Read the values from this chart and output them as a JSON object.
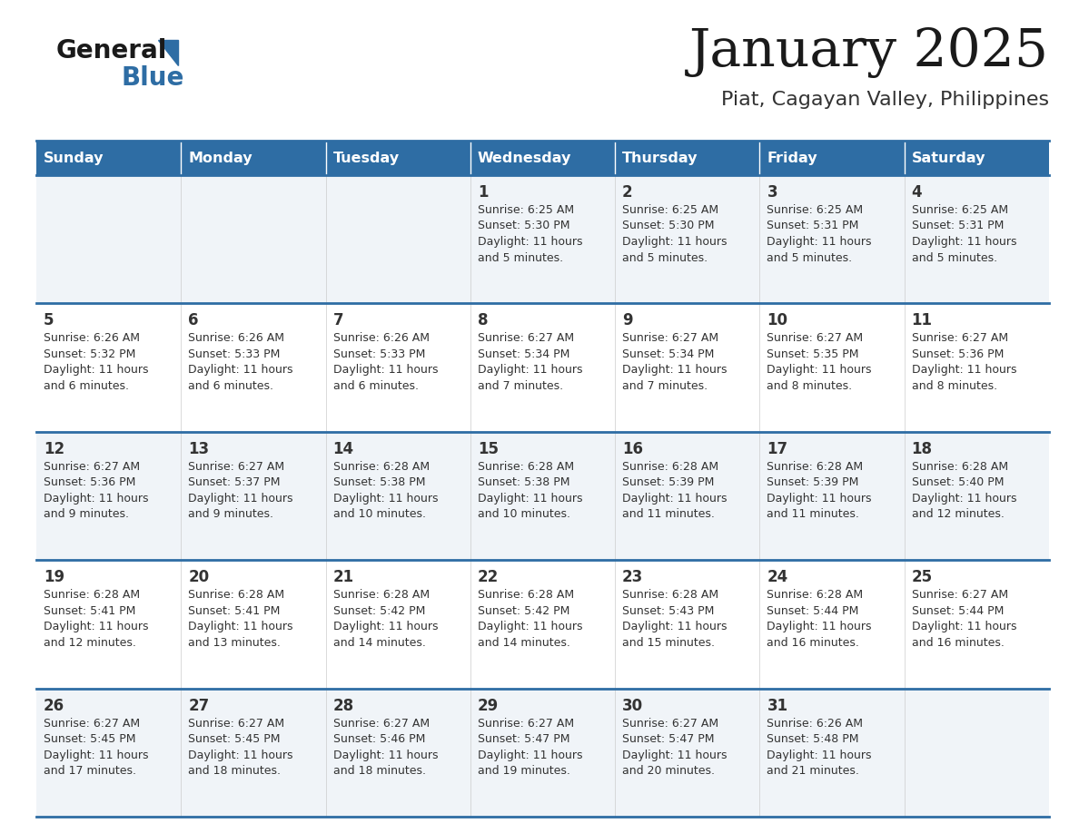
{
  "title": "January 2025",
  "subtitle": "Piat, Cagayan Valley, Philippines",
  "header_color": "#2E6DA4",
  "header_text_color": "#FFFFFF",
  "row0_color": "#F0F4F8",
  "row1_color": "#FFFFFF",
  "border_color": "#2E6DA4",
  "text_color": "#333333",
  "days_of_week": [
    "Sunday",
    "Monday",
    "Tuesday",
    "Wednesday",
    "Thursday",
    "Friday",
    "Saturday"
  ],
  "calendar_data": [
    [
      {
        "day": "",
        "info": ""
      },
      {
        "day": "",
        "info": ""
      },
      {
        "day": "",
        "info": ""
      },
      {
        "day": "1",
        "info": "Sunrise: 6:25 AM\nSunset: 5:30 PM\nDaylight: 11 hours\nand 5 minutes."
      },
      {
        "day": "2",
        "info": "Sunrise: 6:25 AM\nSunset: 5:30 PM\nDaylight: 11 hours\nand 5 minutes."
      },
      {
        "day": "3",
        "info": "Sunrise: 6:25 AM\nSunset: 5:31 PM\nDaylight: 11 hours\nand 5 minutes."
      },
      {
        "day": "4",
        "info": "Sunrise: 6:25 AM\nSunset: 5:31 PM\nDaylight: 11 hours\nand 5 minutes."
      }
    ],
    [
      {
        "day": "5",
        "info": "Sunrise: 6:26 AM\nSunset: 5:32 PM\nDaylight: 11 hours\nand 6 minutes."
      },
      {
        "day": "6",
        "info": "Sunrise: 6:26 AM\nSunset: 5:33 PM\nDaylight: 11 hours\nand 6 minutes."
      },
      {
        "day": "7",
        "info": "Sunrise: 6:26 AM\nSunset: 5:33 PM\nDaylight: 11 hours\nand 6 minutes."
      },
      {
        "day": "8",
        "info": "Sunrise: 6:27 AM\nSunset: 5:34 PM\nDaylight: 11 hours\nand 7 minutes."
      },
      {
        "day": "9",
        "info": "Sunrise: 6:27 AM\nSunset: 5:34 PM\nDaylight: 11 hours\nand 7 minutes."
      },
      {
        "day": "10",
        "info": "Sunrise: 6:27 AM\nSunset: 5:35 PM\nDaylight: 11 hours\nand 8 minutes."
      },
      {
        "day": "11",
        "info": "Sunrise: 6:27 AM\nSunset: 5:36 PM\nDaylight: 11 hours\nand 8 minutes."
      }
    ],
    [
      {
        "day": "12",
        "info": "Sunrise: 6:27 AM\nSunset: 5:36 PM\nDaylight: 11 hours\nand 9 minutes."
      },
      {
        "day": "13",
        "info": "Sunrise: 6:27 AM\nSunset: 5:37 PM\nDaylight: 11 hours\nand 9 minutes."
      },
      {
        "day": "14",
        "info": "Sunrise: 6:28 AM\nSunset: 5:38 PM\nDaylight: 11 hours\nand 10 minutes."
      },
      {
        "day": "15",
        "info": "Sunrise: 6:28 AM\nSunset: 5:38 PM\nDaylight: 11 hours\nand 10 minutes."
      },
      {
        "day": "16",
        "info": "Sunrise: 6:28 AM\nSunset: 5:39 PM\nDaylight: 11 hours\nand 11 minutes."
      },
      {
        "day": "17",
        "info": "Sunrise: 6:28 AM\nSunset: 5:39 PM\nDaylight: 11 hours\nand 11 minutes."
      },
      {
        "day": "18",
        "info": "Sunrise: 6:28 AM\nSunset: 5:40 PM\nDaylight: 11 hours\nand 12 minutes."
      }
    ],
    [
      {
        "day": "19",
        "info": "Sunrise: 6:28 AM\nSunset: 5:41 PM\nDaylight: 11 hours\nand 12 minutes."
      },
      {
        "day": "20",
        "info": "Sunrise: 6:28 AM\nSunset: 5:41 PM\nDaylight: 11 hours\nand 13 minutes."
      },
      {
        "day": "21",
        "info": "Sunrise: 6:28 AM\nSunset: 5:42 PM\nDaylight: 11 hours\nand 14 minutes."
      },
      {
        "day": "22",
        "info": "Sunrise: 6:28 AM\nSunset: 5:42 PM\nDaylight: 11 hours\nand 14 minutes."
      },
      {
        "day": "23",
        "info": "Sunrise: 6:28 AM\nSunset: 5:43 PM\nDaylight: 11 hours\nand 15 minutes."
      },
      {
        "day": "24",
        "info": "Sunrise: 6:28 AM\nSunset: 5:44 PM\nDaylight: 11 hours\nand 16 minutes."
      },
      {
        "day": "25",
        "info": "Sunrise: 6:27 AM\nSunset: 5:44 PM\nDaylight: 11 hours\nand 16 minutes."
      }
    ],
    [
      {
        "day": "26",
        "info": "Sunrise: 6:27 AM\nSunset: 5:45 PM\nDaylight: 11 hours\nand 17 minutes."
      },
      {
        "day": "27",
        "info": "Sunrise: 6:27 AM\nSunset: 5:45 PM\nDaylight: 11 hours\nand 18 minutes."
      },
      {
        "day": "28",
        "info": "Sunrise: 6:27 AM\nSunset: 5:46 PM\nDaylight: 11 hours\nand 18 minutes."
      },
      {
        "day": "29",
        "info": "Sunrise: 6:27 AM\nSunset: 5:47 PM\nDaylight: 11 hours\nand 19 minutes."
      },
      {
        "day": "30",
        "info": "Sunrise: 6:27 AM\nSunset: 5:47 PM\nDaylight: 11 hours\nand 20 minutes."
      },
      {
        "day": "31",
        "info": "Sunrise: 6:26 AM\nSunset: 5:48 PM\nDaylight: 11 hours\nand 21 minutes."
      },
      {
        "day": "",
        "info": ""
      }
    ]
  ],
  "logo_text_general": "General",
  "logo_text_blue": "Blue",
  "logo_triangle_color": "#2E6DA4",
  "logo_general_color": "#1a1a1a"
}
